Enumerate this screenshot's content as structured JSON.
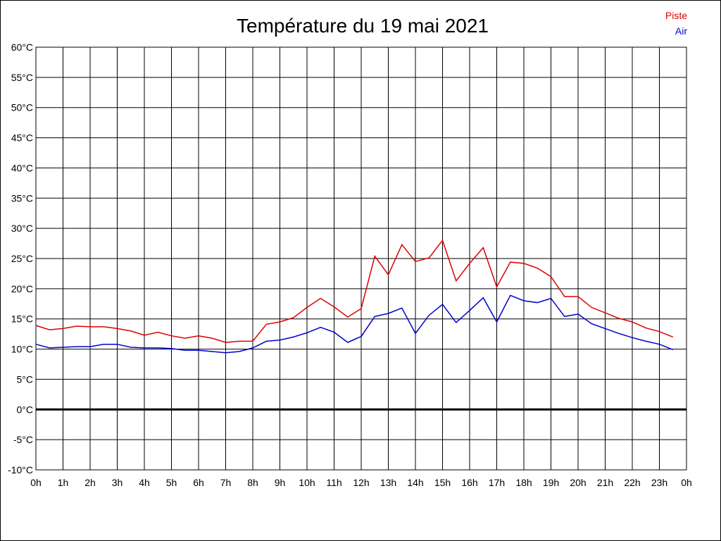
{
  "chart_data": {
    "type": "line",
    "title": "Température du 19 mai 2021",
    "xlabel": "",
    "ylabel": "",
    "x_ticks": [
      "0h",
      "1h",
      "2h",
      "3h",
      "4h",
      "5h",
      "6h",
      "7h",
      "8h",
      "9h",
      "10h",
      "11h",
      "12h",
      "13h",
      "14h",
      "15h",
      "16h",
      "17h",
      "18h",
      "19h",
      "20h",
      "21h",
      "22h",
      "23h",
      "0h"
    ],
    "y_ticks": [
      "60°C",
      "55°C",
      "50°C",
      "45°C",
      "40°C",
      "35°C",
      "30°C",
      "25°C",
      "20°C",
      "15°C",
      "10°C",
      "5°C",
      "0°C",
      "-5°C",
      "-10°C"
    ],
    "xlim": [
      0,
      24
    ],
    "ylim": [
      -10,
      60
    ],
    "grid": true,
    "legend_position": "top-right",
    "zero_line": true,
    "x": [
      0,
      0.5,
      1,
      1.5,
      2,
      2.5,
      3,
      3.5,
      4,
      4.5,
      5,
      5.5,
      6,
      6.5,
      7,
      7.5,
      8,
      8.5,
      9,
      9.5,
      10,
      10.5,
      11,
      11.5,
      12,
      12.5,
      13,
      13.5,
      14,
      14.5,
      15,
      15.5,
      16,
      16.5,
      17,
      17.5,
      18,
      18.5,
      19,
      19.5,
      20,
      20.5,
      21,
      21.5,
      22,
      22.5,
      23,
      23.5
    ],
    "series": [
      {
        "name": "Piste",
        "color": "#dd0000",
        "values": [
          13.9,
          13.2,
          13.4,
          13.8,
          13.7,
          13.7,
          13.4,
          13.0,
          12.3,
          12.8,
          12.2,
          11.8,
          12.2,
          11.8,
          11.1,
          11.3,
          11.3,
          14.1,
          14.5,
          15.2,
          16.9,
          18.4,
          17.0,
          15.3,
          16.7,
          25.4,
          22.3,
          27.3,
          24.5,
          25.1,
          28.0,
          21.3,
          24.2,
          26.8,
          20.3,
          24.4,
          24.2,
          23.4,
          22.0,
          18.7,
          18.7,
          16.9,
          16.0,
          15.1,
          14.5,
          13.5,
          12.9,
          12.0
        ]
      },
      {
        "name": "Air",
        "color": "#0000cc",
        "values": [
          10.8,
          10.2,
          10.3,
          10.4,
          10.4,
          10.8,
          10.8,
          10.3,
          10.2,
          10.2,
          10.1,
          9.8,
          9.8,
          9.6,
          9.4,
          9.6,
          10.2,
          11.3,
          11.5,
          12.0,
          12.7,
          13.6,
          12.8,
          11.1,
          12.1,
          15.4,
          15.9,
          16.8,
          12.6,
          15.6,
          17.4,
          14.4,
          16.4,
          18.5,
          14.5,
          18.9,
          18.0,
          17.7,
          18.4,
          15.4,
          15.8,
          14.2,
          13.4,
          12.6,
          11.9,
          11.3,
          10.8,
          9.9
        ]
      }
    ]
  }
}
